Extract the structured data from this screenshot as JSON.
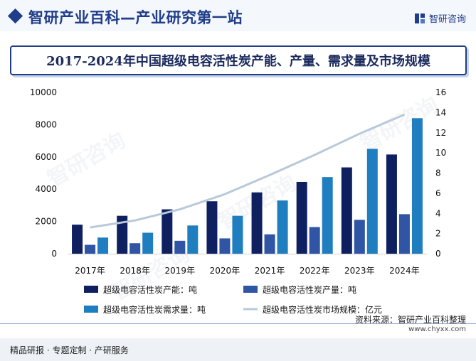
{
  "header": {
    "title": "智研产业百科—产业研究第一站",
    "logo_text": "智研咨询",
    "accent_color": "#1f3d8a"
  },
  "chart_title": "2017-2024年中国超级电容活性炭产能、产量、需求量及市场规模",
  "footer": {
    "source": "资料来源：智研产业百科整理",
    "url": "www.chyxx.com",
    "tagline": "精品研报 · 专题定制 · 产研服务"
  },
  "watermark_text": "智研咨询",
  "chart_data": {
    "type": "bar",
    "categories": [
      "2017年",
      "2018年",
      "2019年",
      "2020年",
      "2021年",
      "2022年",
      "2023年",
      "2024年"
    ],
    "series": [
      {
        "name": "超级电容活性炭产能：吨",
        "type": "bar",
        "axis": "left",
        "color": "#0f2060",
        "values": [
          1800,
          2350,
          2750,
          3250,
          3800,
          4450,
          5350,
          6150
        ]
      },
      {
        "name": "超级电容活性炭产量：吨",
        "type": "bar",
        "axis": "left",
        "color": "#2f55a4",
        "values": [
          550,
          650,
          800,
          950,
          1200,
          1650,
          2100,
          2450
        ]
      },
      {
        "name": "超级电容活性炭需求量：吨",
        "type": "bar",
        "axis": "left",
        "color": "#1f7ec0",
        "values": [
          1000,
          1300,
          1750,
          2350,
          3300,
          4750,
          6500,
          8400
        ]
      },
      {
        "name": "超级电容活性炭市场规模：亿元",
        "type": "line",
        "axis": "right",
        "color": "#b8c9d9",
        "values": [
          2.6,
          3.3,
          4.4,
          5.9,
          7.8,
          9.8,
          11.9,
          13.8
        ]
      }
    ],
    "y_left": {
      "min": 0,
      "max": 10000,
      "ticks": [
        0,
        2000,
        4000,
        6000,
        8000,
        10000
      ]
    },
    "y_right": {
      "min": 0,
      "max": 16,
      "ticks": [
        0,
        2,
        4,
        6,
        8,
        10,
        12,
        14,
        16
      ]
    },
    "legend_position": "bottom",
    "grid": false
  }
}
